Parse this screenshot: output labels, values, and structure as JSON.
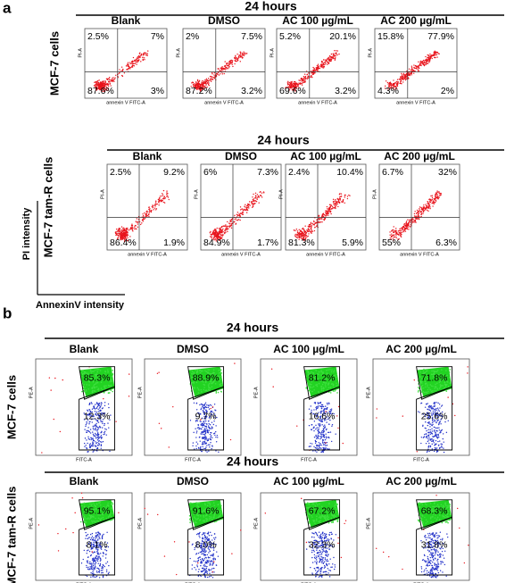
{
  "figure": {
    "panels": [
      {
        "label": "a",
        "y_axis_label": "PI intensity",
        "x_axis_label": "AnnexinV intensity",
        "plot_y_label": "PI-A",
        "plot_x_label": "annexin V FITC-A",
        "rows": [
          {
            "time": "24 hours",
            "cell_line": "MCF-7 cells",
            "plots": [
              {
                "condition": "Blank",
                "ul": "2.5%",
                "ur": "7%",
                "ll": "87.6%",
                "lr": "3%"
              },
              {
                "condition": "DMSO",
                "ul": "2%",
                "ur": "7.5%",
                "ll": "87.2%",
                "lr": "3.2%"
              },
              {
                "condition": "AC 100 µg/mL",
                "ul": "5.2%",
                "ur": "20.1%",
                "ll": "69.6%",
                "lr": "3.2%"
              },
              {
                "condition": "AC 200 µg/mL",
                "ul": "15.8%",
                "ur": "77.9%",
                "ll": "4.3%",
                "lr": "2%"
              }
            ]
          },
          {
            "time": "24 hours",
            "cell_line": "MCF-7 tam-R cells",
            "plots": [
              {
                "condition": "Blank",
                "ul": "2.5%",
                "ur": "9.2%",
                "ll": "86.4%",
                "lr": "1.9%"
              },
              {
                "condition": "DMSO",
                "ul": "6%",
                "ur": "7.3%",
                "ll": "84.9%",
                "lr": "1.7%"
              },
              {
                "condition": "AC 100 µg/mL",
                "ul": "2.4%",
                "ur": "10.4%",
                "ll": "81.3%",
                "lr": "5.9%"
              },
              {
                "condition": "AC 200 µg/mL",
                "ul": "6.7%",
                "ur": "32%",
                "ll": "55%",
                "lr": "6.3%"
              }
            ]
          }
        ]
      },
      {
        "label": "b",
        "plot_y_label": "PE-A",
        "plot_x_label": "FITC-A",
        "rows": [
          {
            "time": "24 hours",
            "cell_line": "MCF-7 cells",
            "plots": [
              {
                "condition": "Blank",
                "upper": "85.3%",
                "lower": "12.3%"
              },
              {
                "condition": "DMSO",
                "upper": "88.9%",
                "lower": "9.7%"
              },
              {
                "condition": "AC 100 µg/mL",
                "upper": "81.2%",
                "lower": "16.6%"
              },
              {
                "condition": "AC 200 µg/mL",
                "upper": "71.8%",
                "lower": "25.6%"
              }
            ]
          },
          {
            "time": "24 hours",
            "cell_line": "MCF-7 tam-R cells",
            "plots": [
              {
                "condition": "Blank",
                "upper": "95.1%",
                "lower": "8.1%"
              },
              {
                "condition": "DMSO",
                "upper": "91.6%",
                "lower": "8.0%"
              },
              {
                "condition": "AC 100 µg/mL",
                "upper": "67.2%",
                "lower": "32.3%"
              },
              {
                "condition": "AC 200 µg/mL",
                "upper": "68.3%",
                "lower": "31.8%"
              }
            ]
          }
        ]
      }
    ]
  }
}
